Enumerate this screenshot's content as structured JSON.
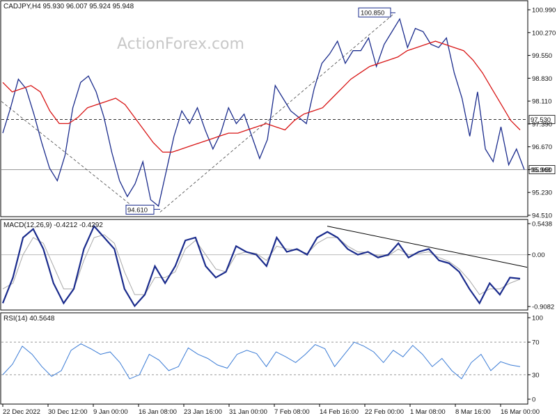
{
  "header": {
    "symbol_line": "CADJPY,H4  95.930 96.007 95.924 95.948",
    "watermark": "ActionForex.com"
  },
  "chart_data": [
    {
      "type": "line",
      "title": "CADJPY,H4",
      "ohlc_last": {
        "open": 95.93,
        "high": 96.007,
        "low": 95.924,
        "close": 95.948
      },
      "ylim": [
        94.51,
        101.2
      ],
      "y_ticks": [
        "100.990",
        "100.270",
        "99.550",
        "98.830",
        "98.110",
        "97.390",
        "96.670",
        "95.950",
        "95.230",
        "94.510"
      ],
      "x_ticks": [
        "22 Dec 2022",
        "30 Dec 12:00",
        "9 Jan 00:00",
        "16 Jan 08:00",
        "23 Jan 16:00",
        "31 Jan 00:00",
        "7 Feb 08:00",
        "14 Feb 16:00",
        "22 Feb 00:00",
        "1 Mar 08:00",
        "8 Mar 16:00",
        "16 Mar 00:00"
      ],
      "price_series": [
        {
          "name": "price",
          "color": "#1a2b8c",
          "values": [
            97.1,
            97.9,
            98.8,
            98.5,
            97.7,
            96.8,
            96.0,
            95.6,
            96.4,
            97.9,
            98.7,
            98.9,
            98.4,
            97.6,
            96.5,
            95.6,
            95.1,
            95.5,
            96.2,
            95.0,
            94.8,
            95.9,
            97.0,
            97.8,
            97.4,
            97.9,
            97.2,
            96.6,
            97.1,
            97.9,
            97.4,
            97.7,
            97.0,
            96.3,
            96.9,
            98.6,
            98.2,
            97.8,
            97.6,
            97.4,
            98.5,
            99.3,
            99.6,
            100.0,
            99.3,
            99.7,
            99.7,
            100.1,
            99.2,
            99.9,
            100.3,
            100.7,
            99.8,
            100.4,
            100.3,
            99.9,
            99.8,
            100.1,
            99.0,
            98.2,
            97.0,
            98.4,
            96.6,
            96.2,
            97.3,
            96.1,
            96.6,
            95.948
          ]
        },
        {
          "name": "moving average",
          "color": "#d81414",
          "values": [
            98.7,
            98.4,
            98.5,
            98.6,
            98.4,
            97.8,
            97.4,
            97.4,
            97.6,
            97.9,
            98.0,
            98.1,
            98.2,
            98.0,
            97.6,
            97.2,
            96.8,
            96.5,
            96.5,
            96.6,
            96.7,
            96.8,
            96.9,
            97.0,
            97.1,
            97.1,
            97.2,
            97.3,
            97.4,
            97.3,
            97.2,
            97.5,
            97.7,
            97.8,
            97.9,
            98.2,
            98.5,
            98.8,
            99.0,
            99.2,
            99.3,
            99.4,
            99.5,
            99.7,
            99.8,
            99.9,
            100.0,
            99.9,
            99.8,
            99.7,
            99.4,
            99.0,
            98.5,
            98.0,
            97.5,
            97.2
          ]
        }
      ],
      "hlines": [
        {
          "value": 97.53,
          "label": "97.530",
          "style": "dashed"
        },
        {
          "value": 95.948,
          "label": "95.948",
          "style": "solid"
        }
      ],
      "annotations": [
        {
          "text": "100.850",
          "value": 100.85
        },
        {
          "text": "94.610",
          "value": 94.61
        }
      ]
    },
    {
      "type": "line",
      "title": "MACD(12,26,9) -0.4212 -0.4292",
      "ylim": [
        -0.9082,
        0.5438
      ],
      "y_ticks": [
        "0.5438",
        "0.00",
        "-0.9082"
      ],
      "series": [
        {
          "name": "MACD",
          "color": "#1a2b8c",
          "values": [
            -0.85,
            -0.4,
            0.3,
            0.45,
            0.1,
            -0.5,
            -0.85,
            -0.6,
            0.1,
            0.5,
            0.3,
            0.1,
            -0.6,
            -0.9,
            -0.7,
            -0.2,
            -0.5,
            -0.2,
            0.25,
            0.3,
            -0.2,
            -0.4,
            -0.3,
            0.15,
            0.05,
            0.0,
            -0.2,
            0.3,
            0.05,
            0.1,
            0.0,
            0.3,
            0.4,
            0.3,
            0.1,
            0.0,
            0.05,
            -0.05,
            0.0,
            0.2,
            -0.05,
            0.05,
            0.1,
            -0.1,
            -0.15,
            -0.3,
            -0.6,
            -0.85,
            -0.5,
            -0.7,
            -0.4,
            -0.42
          ]
        },
        {
          "name": "Signal",
          "color": "#a8a8a8",
          "values": [
            -0.6,
            -0.5,
            0.0,
            0.3,
            0.2,
            -0.2,
            -0.6,
            -0.6,
            -0.1,
            0.3,
            0.35,
            0.2,
            -0.3,
            -0.7,
            -0.7,
            -0.4,
            -0.4,
            -0.3,
            0.1,
            0.25,
            0.0,
            -0.25,
            -0.3,
            0.0,
            0.05,
            0.02,
            -0.1,
            0.15,
            0.1,
            0.08,
            0.02,
            0.2,
            0.3,
            0.3,
            0.15,
            0.05,
            0.04,
            -0.02,
            -0.02,
            0.1,
            0.0,
            0.02,
            0.05,
            -0.05,
            -0.12,
            -0.25,
            -0.45,
            -0.7,
            -0.6,
            -0.6,
            -0.5,
            -0.43
          ]
        }
      ]
    },
    {
      "type": "line",
      "title": "RSI(14) 40.5648",
      "ylim": [
        0,
        100
      ],
      "y_ticks": [
        "100",
        "70",
        "30",
        "0"
      ],
      "levels": [
        70,
        30
      ],
      "series": [
        {
          "name": "RSI",
          "color": "#3a7bd5",
          "values": [
            30,
            43,
            65,
            55,
            40,
            28,
            35,
            60,
            68,
            62,
            55,
            58,
            45,
            25,
            30,
            55,
            48,
            35,
            40,
            63,
            55,
            50,
            42,
            38,
            55,
            60,
            56,
            40,
            58,
            52,
            45,
            55,
            67,
            62,
            40,
            55,
            70,
            65,
            58,
            45,
            60,
            52,
            66,
            55,
            40,
            50,
            35,
            25,
            45,
            55,
            35,
            46,
            42,
            40
          ]
        }
      ]
    }
  ]
}
